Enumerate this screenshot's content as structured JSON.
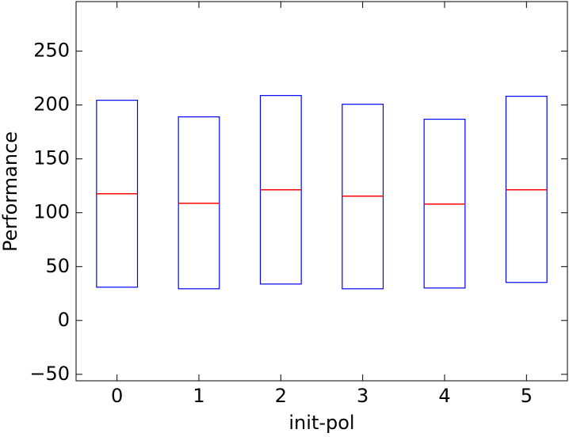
{
  "chart_data": {
    "type": "box",
    "xlabel": "init-pol",
    "ylabel": "Performance",
    "categories": [
      "0",
      "1",
      "2",
      "3",
      "4",
      "5"
    ],
    "boxes": [
      {
        "q1": 30.9,
        "median": 117.6,
        "q3": 204.4
      },
      {
        "q1": 29.4,
        "median": 108.8,
        "q3": 189
      },
      {
        "q1": 33.8,
        "median": 121.3,
        "q3": 208.8
      },
      {
        "q1": 29.4,
        "median": 115.4,
        "q3": 200.7
      },
      {
        "q1": 30.1,
        "median": 108.1,
        "q3": 186.8
      },
      {
        "q1": 35.3,
        "median": 121.3,
        "q3": 208.1
      }
    ],
    "box_color": "#0000ff",
    "median_color": "#ff0000",
    "ylim": [
      -56,
      296
    ],
    "yticks": [
      {
        "value": -50,
        "label": "−50"
      },
      0,
      50,
      100,
      150,
      200,
      250
    ]
  }
}
